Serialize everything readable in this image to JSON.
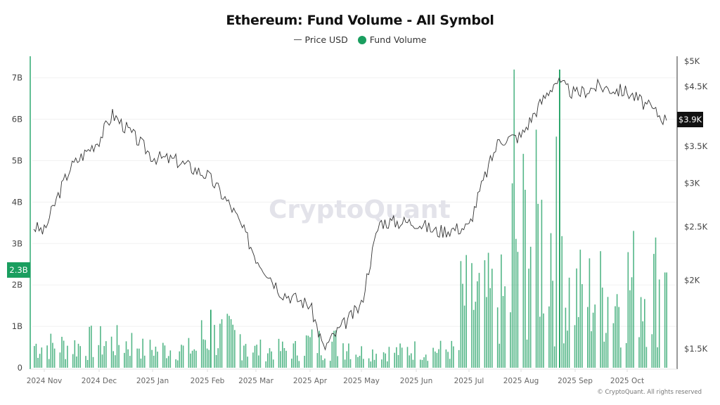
{
  "header": {
    "title": "Ethereum: Fund Volume - All Symbol"
  },
  "legend": {
    "items": [
      {
        "label": "Price USD",
        "type": "line",
        "color": "#555555"
      },
      {
        "label": "Fund Volume",
        "type": "dot",
        "color": "#1a9e5f"
      }
    ]
  },
  "watermark": "CryptoQuant",
  "footer": {
    "copyright": "© CryptoQuant. All rights reserved"
  },
  "axes": {
    "left": {
      "ticks": [
        "0",
        "1B",
        "2B",
        "3B",
        "4B",
        "5B",
        "6B",
        "7B"
      ],
      "current_badge": "2.3B",
      "badge_color": "#1a9e5f"
    },
    "right": {
      "ticks": [
        "$1.5K",
        "$2K",
        "$2.5K",
        "$3K",
        "$3.5K",
        "$4.5K",
        "$5K"
      ],
      "current_badge": "$3.9K",
      "badge_color": "#111111"
    },
    "x": {
      "ticks": [
        "2024 Nov",
        "2024 Dec",
        "2025 Jan",
        "2025 Feb",
        "2025 Mar",
        "2025 Apr",
        "2025 May",
        "2025 Jun",
        "2025 Jul",
        "2025 Aug",
        "2025 Sep",
        "2025 Oct"
      ]
    }
  },
  "colors": {
    "bar": "#1a9e5f",
    "price_line": "#333333",
    "grid": "#f0f0f0",
    "left_axis_line": "#2eaa72"
  },
  "chart_data": {
    "type": "bar+line",
    "title": "Ethereum: Fund Volume - All Symbol",
    "xlabel": "",
    "ylabel_left": "Fund Volume",
    "ylabel_right": "Price USD",
    "ylim_left": [
      0,
      7500000000
    ],
    "ylim_right": [
      1300,
      5000
    ],
    "right_scale": "log",
    "grid": true,
    "legend_position": "top-center",
    "x_ticks": [
      "2024 Nov",
      "2024 Dec",
      "2025 Jan",
      "2025 Feb",
      "2025 Mar",
      "2025 Apr",
      "2025 May",
      "2025 Jun",
      "2025 Jul",
      "2025 Aug",
      "2025 Sep",
      "2025 Oct"
    ],
    "series": [
      {
        "name": "Price USD",
        "type": "line",
        "axis": "right",
        "monthly_approx": [
          {
            "x": "2024 Oct end",
            "y": 2500
          },
          {
            "x": "2024 Nov",
            "y": 2450
          },
          {
            "x": "2024 Nov mid",
            "y": 3200
          },
          {
            "x": "2024 Dec",
            "y": 3600
          },
          {
            "x": "2024 Dec mid",
            "y": 4000
          },
          {
            "x": "2025 Jan",
            "y": 3350
          },
          {
            "x": "2025 Jan mid",
            "y": 3300
          },
          {
            "x": "2025 Feb",
            "y": 3100
          },
          {
            "x": "2025 Feb mid",
            "y": 2700
          },
          {
            "x": "2025 Mar",
            "y": 2200
          },
          {
            "x": "2025 Mar mid",
            "y": 1900
          },
          {
            "x": "2025 Apr",
            "y": 1800
          },
          {
            "x": "2025 Apr mid",
            "y": 1500
          },
          {
            "x": "2025 May",
            "y": 1800
          },
          {
            "x": "2025 May mid",
            "y": 2550
          },
          {
            "x": "2025 Jun",
            "y": 2550
          },
          {
            "x": "2025 Jun mid",
            "y": 2450
          },
          {
            "x": "2025 Jul",
            "y": 2500
          },
          {
            "x": "2025 Jul mid",
            "y": 3600
          },
          {
            "x": "2025 Aug",
            "y": 3650
          },
          {
            "x": "2025 Aug mid",
            "y": 4600
          },
          {
            "x": "2025 Sep",
            "y": 4350
          },
          {
            "x": "2025 Sep mid",
            "y": 4500
          },
          {
            "x": "2025 Oct",
            "y": 4400
          },
          {
            "x": "2025 Oct end",
            "y": 3900
          }
        ],
        "last_value": 3900
      },
      {
        "name": "Fund Volume",
        "type": "bar",
        "axis": "left",
        "weekly_peak_approx_billions": {
          "2024 Nov": 0.9,
          "2024 Dec": 1.05,
          "2025 Jan": 0.7,
          "2025 Feb": 1.4,
          "2025 Mar": 0.65,
          "2025 Apr": 1.05,
          "2025 May": 0.55,
          "2025 Jun": 0.65,
          "2025 Jul": 3.2,
          "2025 Aug": 7.2,
          "2025 Sep": 3.6,
          "2025 Oct": 4.3
        },
        "last_value_billions": 2.3
      }
    ]
  }
}
